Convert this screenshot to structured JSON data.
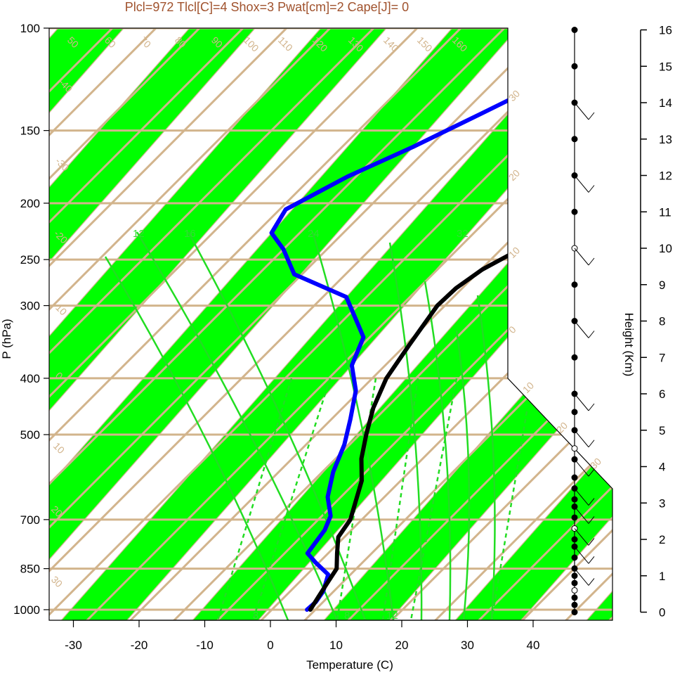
{
  "chart_data": {
    "type": "line",
    "title": "Plcl=972 Tlcl[C]=4 Shox=3 Pwat[cm]=2 Cape[J]= 0",
    "xlabel": "Temperature (C)",
    "ylabel": "P (hPa)",
    "y2label": "Height (Km)",
    "x_ticks": [
      "-30",
      "-20",
      "-10",
      "0",
      "10",
      "20",
      "30",
      "40"
    ],
    "p_ticks": [
      "100",
      "150",
      "200",
      "250",
      "300",
      "400",
      "500",
      "700",
      "850",
      "1000"
    ],
    "height_ticks": [
      "0",
      "1",
      "2",
      "3",
      "4",
      "5",
      "6",
      "7",
      "8",
      "9",
      "10",
      "11",
      "12",
      "13",
      "14",
      "15",
      "16"
    ],
    "isotherm_labels": [
      "-40",
      "-30",
      "-20",
      "-10",
      "0",
      "10",
      "20",
      "30",
      "40",
      "50",
      "60",
      "70",
      "80",
      "90",
      "100",
      "110",
      "120",
      "130",
      "140",
      "150",
      "160"
    ],
    "mixing_ratio_labels_mid": [
      "12",
      "16",
      "24",
      "32"
    ],
    "mixing_ratio_labels_low": [
      "3",
      "8",
      "12"
    ],
    "dry_adiabat_labels_right": [
      "30",
      "20",
      "10",
      "0",
      "10",
      "20",
      "30"
    ],
    "colors": {
      "temperature": "#000000",
      "dewpoint": "#0000ff",
      "band": "#00ff00",
      "isobar": "#d2b48c",
      "mixing_ratio": "#22dd22",
      "title": "#a0522d"
    },
    "series": [
      {
        "key": "temperature",
        "points": [
          [
            6.5,
            1000
          ],
          [
            6,
            950
          ],
          [
            5.5,
            900
          ],
          [
            5,
            850
          ],
          [
            3,
            800
          ],
          [
            1,
            750
          ],
          [
            0.5,
            700
          ],
          [
            -3,
            600
          ],
          [
            -6,
            550
          ],
          [
            -8.5,
            500
          ],
          [
            -11,
            450
          ],
          [
            -13,
            400
          ],
          [
            -14,
            350
          ],
          [
            -15,
            300
          ],
          [
            -14.5,
            280
          ],
          [
            -13,
            260
          ],
          [
            -10,
            240
          ],
          [
            -5,
            220
          ],
          [
            0,
            200
          ],
          [
            4,
            190
          ],
          [
            5,
            175
          ],
          [
            8,
            160
          ],
          [
            10,
            150
          ],
          [
            11,
            140
          ],
          [
            12,
            130
          ],
          [
            14,
            120
          ],
          [
            15,
            113
          ]
        ]
      },
      {
        "key": "dewpoint",
        "points": [
          [
            6,
            1000
          ],
          [
            6.3,
            970
          ],
          [
            6,
            930
          ],
          [
            4.5,
            870
          ],
          [
            1,
            830
          ],
          [
            -1.5,
            800
          ],
          [
            -2,
            730
          ],
          [
            -3,
            690
          ],
          [
            -6,
            640
          ],
          [
            -8.5,
            580
          ],
          [
            -10.5,
            520
          ],
          [
            -13,
            470
          ],
          [
            -16,
            420
          ],
          [
            -20,
            380
          ],
          [
            -22,
            340
          ],
          [
            -30,
            290
          ],
          [
            -41,
            265
          ],
          [
            -46,
            240
          ],
          [
            -50,
            225
          ],
          [
            -51,
            205
          ],
          [
            -46,
            180
          ],
          [
            -40,
            160
          ],
          [
            -34,
            140
          ],
          [
            -29,
            125
          ],
          [
            -25,
            113
          ]
        ]
      }
    ],
    "wind_profile_km": [
      0,
      0.2,
      0.4,
      0.6,
      0.8,
      1.0,
      1.2,
      1.5,
      1.8,
      2.0,
      2.3,
      2.6,
      2.9,
      3.1,
      3.4,
      3.7,
      4.2,
      4.5,
      5.0,
      5.5,
      6.0,
      7.0,
      8.0,
      9.0,
      10.0,
      11.0,
      12.0,
      13.0,
      14.0,
      15.0,
      16.0
    ]
  }
}
